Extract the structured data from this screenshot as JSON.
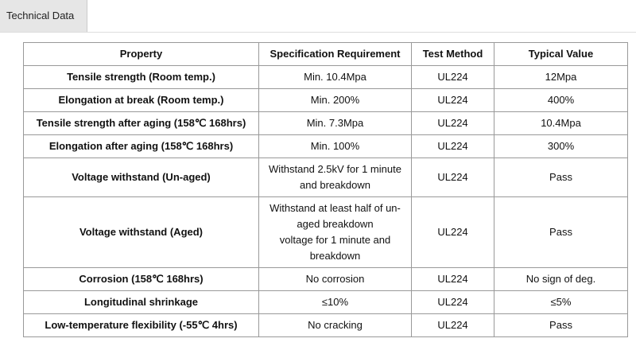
{
  "tab": "Technical Data",
  "table": {
    "columns": [
      "Property",
      "Specification Requirement",
      "Test Method",
      "Typical Value"
    ],
    "rows": [
      [
        "Tensile strength (Room temp.)",
        "Min. 10.4Mpa",
        "UL224",
        "12Mpa"
      ],
      [
        "Elongation at break (Room temp.)",
        "Min. 200%",
        "UL224",
        "400%"
      ],
      [
        "Tensile strength after aging (158℃ 168hrs)",
        "Min. 7.3Mpa",
        "UL224",
        "10.4Mpa"
      ],
      [
        "Elongation after aging (158℃ 168hrs)",
        "Min. 100%",
        "UL224",
        "300%"
      ],
      [
        "Voltage withstand (Un-aged)",
        [
          "Withstand 2.5kV for 1 minute",
          "and breakdown"
        ],
        "UL224",
        "Pass"
      ],
      [
        "Voltage withstand (Aged)",
        [
          "Withstand at least half of un-",
          "aged breakdown",
          "voltage for 1 minute and",
          "breakdown"
        ],
        "UL224",
        "Pass"
      ],
      [
        "Corrosion (158℃ 168hrs)",
        "No corrosion",
        "UL224",
        "No sign of deg."
      ],
      [
        "Longitudinal shrinkage",
        "≤10%",
        "UL224",
        "≤5%"
      ],
      [
        "Low-temperature flexibility (-55℃ 4hrs)",
        "No cracking",
        "UL224",
        "Pass"
      ]
    ]
  }
}
